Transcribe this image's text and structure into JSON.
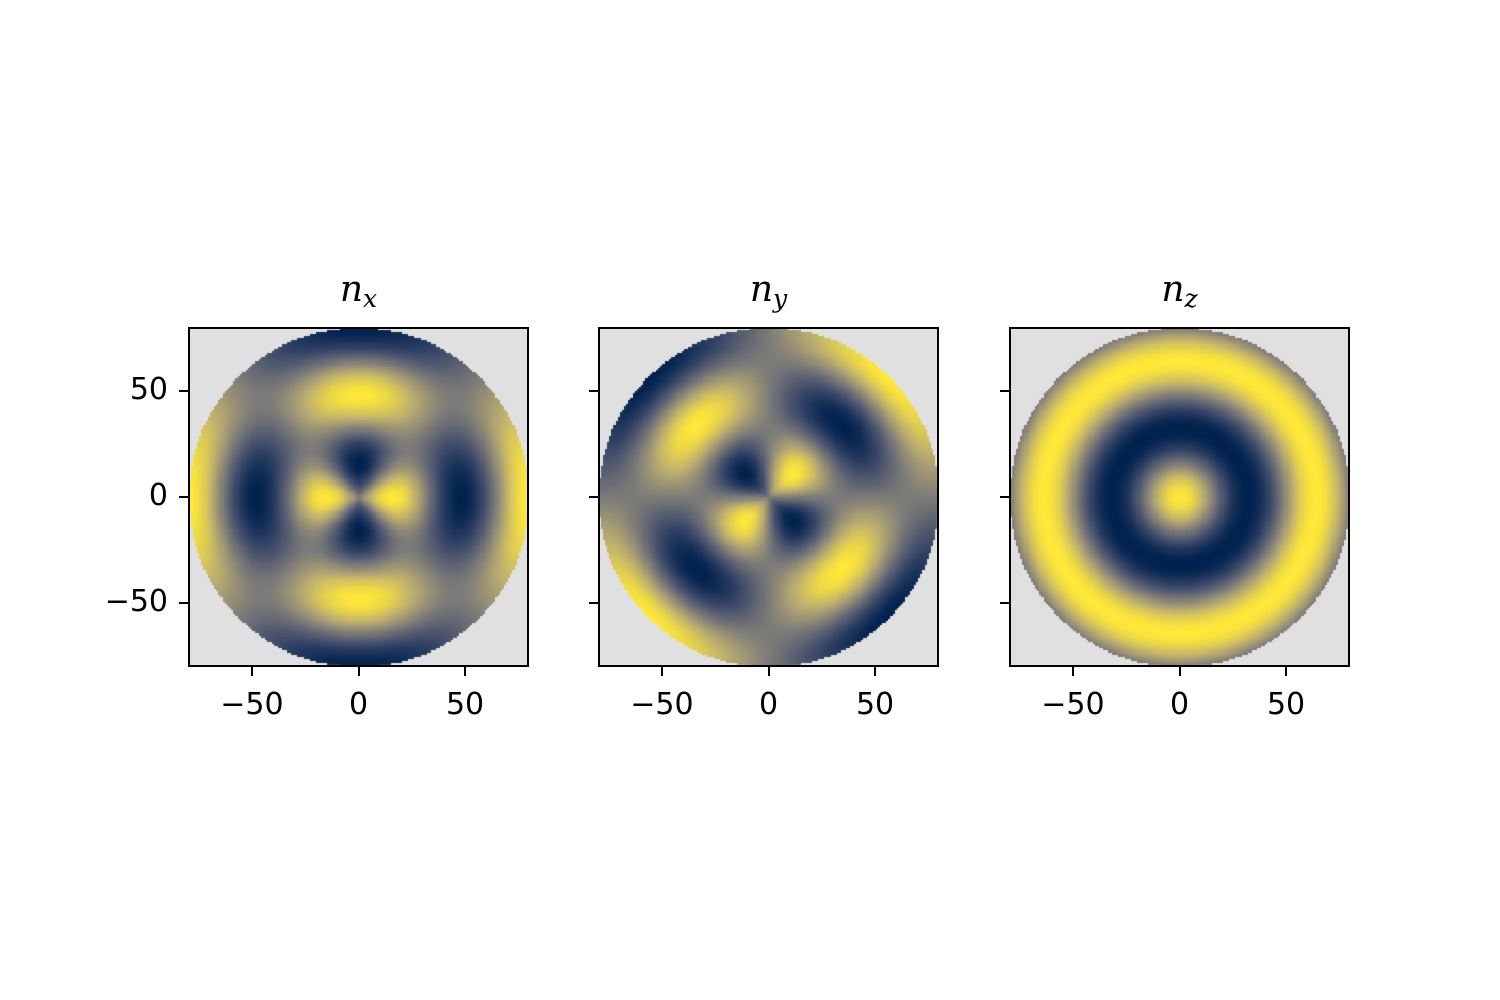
{
  "chart_data": [
    {
      "type": "heatmap",
      "title": "n",
      "title_sub": "x",
      "xlim": [
        -80,
        80
      ],
      "ylim": [
        -80,
        80
      ],
      "xticks": [
        -50,
        0,
        50
      ],
      "xtick_labels": [
        "−50",
        "0",
        "50"
      ],
      "yticks": [
        50,
        0,
        -50
      ],
      "ytick_labels": [
        "50",
        "0",
        "−50"
      ],
      "show_ytick_labels": true,
      "disk_radius": 80,
      "component": "nx",
      "colormap": "cividis",
      "color_range": [
        -1,
        1
      ],
      "background_color": "#e0e0e0"
    },
    {
      "type": "heatmap",
      "title": "n",
      "title_sub": "y",
      "xlim": [
        -80,
        80
      ],
      "ylim": [
        -80,
        80
      ],
      "xticks": [
        -50,
        0,
        50
      ],
      "xtick_labels": [
        "−50",
        "0",
        "50"
      ],
      "yticks": [
        50,
        0,
        -50
      ],
      "ytick_labels": [
        "",
        "",
        ""
      ],
      "show_ytick_labels": false,
      "disk_radius": 80,
      "component": "ny",
      "colormap": "cividis",
      "color_range": [
        -1,
        1
      ],
      "background_color": "#e0e0e0"
    },
    {
      "type": "heatmap",
      "title": "n",
      "title_sub": "z",
      "xlim": [
        -80,
        80
      ],
      "ylim": [
        -80,
        80
      ],
      "xticks": [
        -50,
        0,
        50
      ],
      "xtick_labels": [
        "−50",
        "0",
        "50"
      ],
      "yticks": [
        50,
        0,
        -50
      ],
      "ytick_labels": [
        "",
        "",
        ""
      ],
      "show_ytick_labels": false,
      "disk_radius": 80,
      "component": "nz",
      "colormap": "cividis",
      "color_range": [
        -1,
        1
      ],
      "background_color": "#e0e0e0"
    }
  ]
}
